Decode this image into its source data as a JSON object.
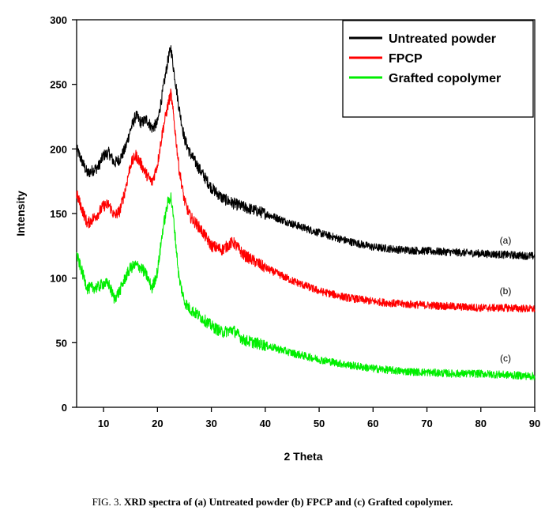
{
  "chart_data": {
    "type": "line",
    "title": "",
    "xlabel": "2 Theta",
    "ylabel": "Intensity",
    "xlim": [
      5,
      90
    ],
    "ylim": [
      0,
      300
    ],
    "x_ticks": [
      10,
      20,
      30,
      40,
      50,
      60,
      70,
      80,
      90
    ],
    "y_ticks": [
      0,
      50,
      100,
      150,
      200,
      250,
      300
    ],
    "grid": false,
    "legend_position": "top-right",
    "series": [
      {
        "name": "Untreated powder",
        "color": "#000000",
        "curve_label": "(a)",
        "x": [
          5,
          7,
          9,
          10,
          11,
          12,
          13,
          14,
          15,
          16,
          17,
          18,
          19,
          20,
          21,
          22,
          22.5,
          23,
          24,
          25,
          26,
          28,
          30,
          32,
          34,
          36,
          40,
          45,
          50,
          55,
          60,
          65,
          70,
          75,
          80,
          85,
          90
        ],
        "y": [
          200,
          181,
          186,
          195,
          197,
          189,
          192,
          200,
          215,
          226,
          220,
          223,
          216,
          220,
          245,
          270,
          278,
          262,
          232,
          208,
          197,
          183,
          170,
          162,
          158,
          155,
          150,
          142,
          135,
          129,
          124,
          122,
          121,
          120,
          119,
          118,
          117
        ]
      },
      {
        "name": "FPCP",
        "color": "#ff0000",
        "curve_label": "(b)",
        "x": [
          5,
          7,
          9,
          10,
          11,
          12,
          13,
          14,
          15,
          16,
          17,
          18,
          19,
          20,
          21,
          22,
          22.5,
          23,
          24,
          25,
          26,
          28,
          30,
          32,
          34,
          36,
          40,
          45,
          50,
          55,
          60,
          65,
          70,
          75,
          80,
          85,
          90
        ],
        "y": [
          165,
          142,
          150,
          156,
          157,
          148,
          152,
          168,
          188,
          195,
          188,
          180,
          174,
          188,
          215,
          235,
          243,
          225,
          185,
          160,
          148,
          138,
          125,
          122,
          128,
          118,
          108,
          98,
          90,
          85,
          82,
          80,
          79,
          78,
          77,
          77,
          76
        ]
      },
      {
        "name": "Grafted copolymer",
        "color": "#00ee00",
        "curve_label": "(c)",
        "x": [
          5,
          7,
          9,
          10,
          11,
          12,
          13,
          14,
          15,
          16,
          17,
          18,
          19,
          20,
          21,
          22,
          22.5,
          23,
          24,
          25,
          26,
          28,
          30,
          32,
          34,
          36,
          40,
          45,
          50,
          55,
          60,
          65,
          70,
          75,
          80,
          85,
          90
        ],
        "y": [
          118,
          92,
          93,
          96,
          95,
          84,
          90,
          100,
          108,
          110,
          108,
          102,
          92,
          105,
          138,
          160,
          163,
          145,
          100,
          82,
          76,
          70,
          63,
          58,
          60,
          52,
          48,
          42,
          37,
          33,
          30,
          28,
          27,
          26,
          26,
          25,
          24
        ]
      }
    ]
  },
  "caption": {
    "prefix": "FIG. 3. ",
    "text": "XRD spectra of (a) Untreated powder (b) FPCP and (c) Grafted copolymer."
  }
}
